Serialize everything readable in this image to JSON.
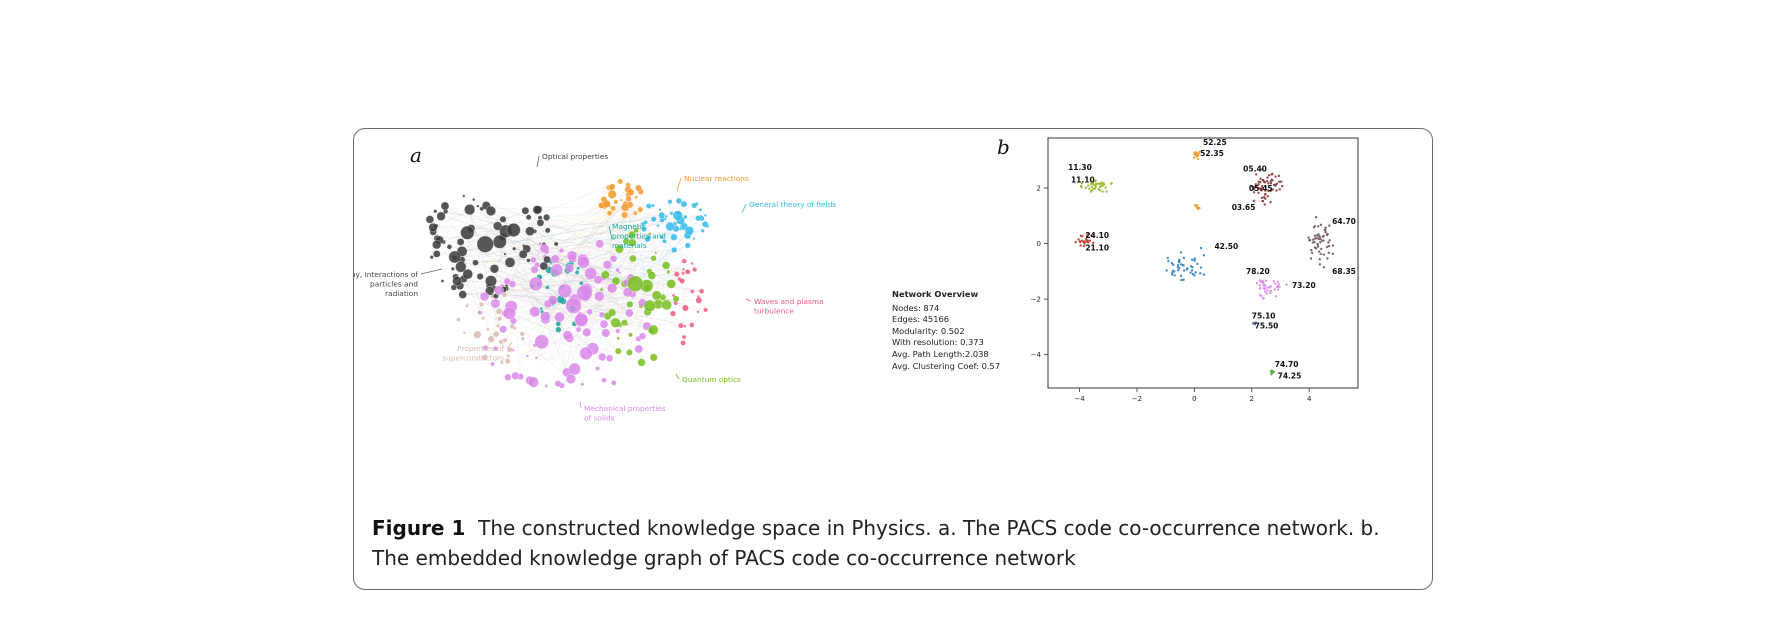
{
  "figure": {
    "panel_a_letter": "a",
    "panel_b_letter": "b",
    "caption_label": "Figure 1",
    "caption_text": "The constructed knowledge space in Physics. a. The PACS code co-occurrence network. b. The embedded knowledge graph of PACS code co-occurrence network"
  },
  "network": {
    "clusters": [
      {
        "name": "Optical properties",
        "color": "#3a3a3a"
      },
      {
        "name": "Nuclear reactions",
        "color": "#f39a2c"
      },
      {
        "name": "General theory of fields",
        "color": "#2fb9e8"
      },
      {
        "name": "Magnetic properties and materials",
        "color": "#19a59a"
      },
      {
        "name": "X-ray, Interactions of particles and radiation",
        "color": "#3a3a3a"
      },
      {
        "name": "Waves and plasma turbulence",
        "color": "#ee5a7e"
      },
      {
        "name": "Properties of superconductors",
        "color": "#d9b8b0"
      },
      {
        "name": "Quantum optics",
        "color": "#77bd1f"
      },
      {
        "name": "Mechanical properties of solids",
        "color": "#d98ae8"
      }
    ],
    "overview": {
      "title": "Network Overview",
      "lines": [
        "Nodes: 874",
        "Edges: 45166",
        "Modularity: 0.502",
        "With resolution: 0.373",
        "Avg. Path Length:2.038",
        "Avg. Clustering Coef: 0.57"
      ]
    }
  },
  "chart_data": {
    "type": "scatter",
    "title": "",
    "xlabel": "",
    "ylabel": "",
    "xlim": [
      -5.1,
      5.7
    ],
    "ylim": [
      -5.2,
      3.8
    ],
    "xticks": [
      -4,
      -2,
      0,
      2,
      4
    ],
    "yticks": [
      2,
      0,
      -2,
      -4
    ],
    "tick_labels_x": [
      "−4",
      "−2",
      "0",
      "2",
      "4"
    ],
    "tick_labels_y": [
      "2",
      "0",
      "−2",
      "−4"
    ],
    "clusters": [
      {
        "name": "11",
        "color": "#9bbb2a",
        "center": [
          -3.4,
          2.1
        ],
        "spread": [
          0.8,
          0.35
        ],
        "count": 40
      },
      {
        "name": "24/21",
        "color": "#c0392b",
        "center": [
          -3.9,
          0.1
        ],
        "spread": [
          0.45,
          0.35
        ],
        "count": 22
      },
      {
        "name": "42",
        "color": "#2f7fc1",
        "center": [
          -0.4,
          -0.8
        ],
        "spread": [
          1.2,
          0.7
        ],
        "count": 45
      },
      {
        "name": "52",
        "color": "#f39a2c",
        "center": [
          0.1,
          3.2
        ],
        "spread": [
          0.25,
          0.2
        ],
        "count": 12
      },
      {
        "name": "03",
        "color": "#f39a2c",
        "center": [
          0.1,
          1.3
        ],
        "spread": [
          0.2,
          0.2
        ],
        "count": 8
      },
      {
        "name": "05",
        "color": "#8a3a3a",
        "center": [
          2.5,
          2.1
        ],
        "spread": [
          0.8,
          0.9
        ],
        "count": 60
      },
      {
        "name": "64/68",
        "color": "#6e5a5a",
        "center": [
          4.4,
          0.0
        ],
        "spread": [
          0.55,
          1.1
        ],
        "count": 55
      },
      {
        "name": "78/73",
        "color": "#d98ae8",
        "center": [
          2.6,
          -1.6
        ],
        "spread": [
          0.7,
          0.6
        ],
        "count": 40
      },
      {
        "name": "75",
        "color": "#4a6aa8",
        "center": [
          2.1,
          -2.9
        ],
        "spread": [
          0.1,
          0.15
        ],
        "count": 6
      },
      {
        "name": "74",
        "color": "#4fae3a",
        "center": [
          2.7,
          -4.6
        ],
        "spread": [
          0.1,
          0.2
        ],
        "count": 8
      }
    ],
    "annotations": [
      {
        "text": "52.25",
        "x": 0.3,
        "y": 3.55
      },
      {
        "text": "52.35",
        "x": 0.2,
        "y": 3.15
      },
      {
        "text": "11.30",
        "x": -4.4,
        "y": 2.65
      },
      {
        "text": "11.10",
        "x": -4.3,
        "y": 2.2
      },
      {
        "text": "05.40",
        "x": 1.7,
        "y": 2.6
      },
      {
        "text": "05.45",
        "x": 1.9,
        "y": 1.9
      },
      {
        "text": "03.65",
        "x": 1.3,
        "y": 1.2
      },
      {
        "text": "64.70",
        "x": 4.8,
        "y": 0.7
      },
      {
        "text": "24.10",
        "x": -3.8,
        "y": 0.2
      },
      {
        "text": "21.10",
        "x": -3.8,
        "y": -0.25
      },
      {
        "text": "42.50",
        "x": 0.7,
        "y": -0.2
      },
      {
        "text": "78.20",
        "x": 1.8,
        "y": -1.1
      },
      {
        "text": "68.35",
        "x": 4.8,
        "y": -1.1
      },
      {
        "text": "73.20",
        "x": 3.4,
        "y": -1.6
      },
      {
        "text": "75.10",
        "x": 2.0,
        "y": -2.7
      },
      {
        "text": "75.50",
        "x": 2.1,
        "y": -3.05
      },
      {
        "text": "74.70",
        "x": 2.8,
        "y": -4.45
      },
      {
        "text": "74.25",
        "x": 2.9,
        "y": -4.85
      }
    ]
  }
}
